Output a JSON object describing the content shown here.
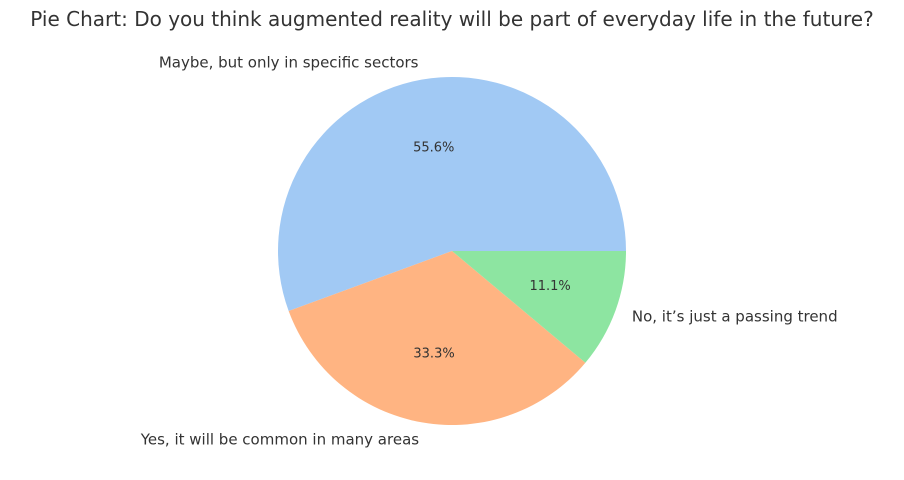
{
  "chart_data": {
    "type": "pie",
    "title": "Pie Chart: Do you think augmented reality will be part of everyday life in the future?",
    "slices": [
      {
        "label": "Maybe, but only in specific sectors",
        "value": 55.6,
        "pct_label": "55.6%",
        "color": "#a1c9f4"
      },
      {
        "label": "Yes, it will be common in many areas",
        "value": 33.3,
        "pct_label": "33.3%",
        "color": "#ffb482"
      },
      {
        "label": "No, it’s just a passing trend",
        "value": 11.1,
        "pct_label": "11.1%",
        "color": "#8de5a1"
      }
    ],
    "start_angle_deg": 0,
    "direction": "counterclockwise",
    "legend": "none"
  }
}
